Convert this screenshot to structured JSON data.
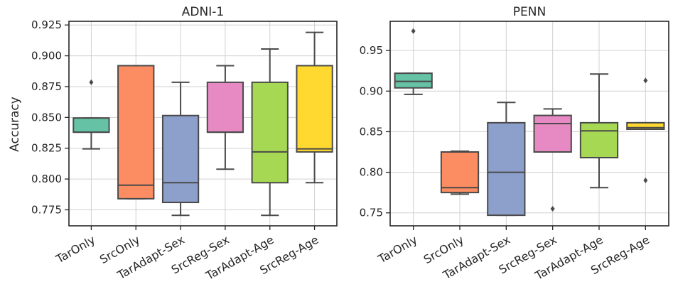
{
  "figure": {
    "ylabel": "Accuracy"
  },
  "chart_data": [
    {
      "type": "box",
      "title": "ADNI-1",
      "ylabel": "Accuracy",
      "ylim": [
        0.762,
        0.928
      ],
      "yticks": [
        "0.775",
        "0.800",
        "0.825",
        "0.850",
        "0.875",
        "0.900",
        "0.925"
      ],
      "grid": true,
      "categories": [
        "TarOnly",
        "SrcOnly",
        "TarAdapt-Sex",
        "SrcReg-Sex",
        "TarAdapt-Age",
        "SrcReg-Age"
      ],
      "boxes": [
        {
          "label": "TarOnly",
          "color": "#66c2a5",
          "whislo": 0.8245,
          "q1": 0.838,
          "median": 0.838,
          "q3": 0.8495,
          "whishi": 0.8495,
          "fliers": [
            0.8785
          ]
        },
        {
          "label": "SrcOnly",
          "color": "#fc8d62",
          "whislo": 0.784,
          "q1": 0.784,
          "median": 0.795,
          "q3": 0.892,
          "whishi": 0.892,
          "fliers": []
        },
        {
          "label": "TarAdapt-Sex",
          "color": "#8da0cb",
          "whislo": 0.7705,
          "q1": 0.781,
          "median": 0.797,
          "q3": 0.8515,
          "whishi": 0.8785,
          "fliers": []
        },
        {
          "label": "SrcReg-Sex",
          "color": "#e78ac3",
          "whislo": 0.808,
          "q1": 0.838,
          "median": 0.838,
          "q3": 0.8785,
          "whishi": 0.892,
          "fliers": []
        },
        {
          "label": "TarAdapt-Age",
          "color": "#a6d854",
          "whislo": 0.7705,
          "q1": 0.797,
          "median": 0.822,
          "q3": 0.8785,
          "whishi": 0.9055,
          "fliers": []
        },
        {
          "label": "SrcReg-Age",
          "color": "#ffd92f",
          "whislo": 0.797,
          "q1": 0.822,
          "median": 0.8245,
          "q3": 0.892,
          "whishi": 0.919,
          "fliers": []
        }
      ]
    },
    {
      "type": "box",
      "title": "PENN",
      "ylabel": "",
      "ylim": [
        0.734,
        0.986
      ],
      "yticks": [
        "0.75",
        "0.80",
        "0.85",
        "0.90",
        "0.95"
      ],
      "grid": true,
      "categories": [
        "TarOnly",
        "SrcOnly",
        "TarAdapt-Sex",
        "SrcReg-Sex",
        "TarAdapt-Age",
        "SrcReg-Age"
      ],
      "boxes": [
        {
          "label": "TarOnly",
          "color": "#66c2a5",
          "whislo": 0.896,
          "q1": 0.904,
          "median": 0.912,
          "q3": 0.922,
          "whishi": 0.922,
          "fliers": [
            0.974
          ]
        },
        {
          "label": "SrcOnly",
          "color": "#fc8d62",
          "whislo": 0.773,
          "q1": 0.775,
          "median": 0.781,
          "q3": 0.825,
          "whishi": 0.826,
          "fliers": []
        },
        {
          "label": "TarAdapt-Sex",
          "color": "#8da0cb",
          "whislo": 0.747,
          "q1": 0.747,
          "median": 0.8,
          "q3": 0.861,
          "whishi": 0.886,
          "fliers": []
        },
        {
          "label": "SrcReg-Sex",
          "color": "#e78ac3",
          "whislo": 0.825,
          "q1": 0.825,
          "median": 0.86,
          "q3": 0.87,
          "whishi": 0.878,
          "fliers": [
            0.755
          ]
        },
        {
          "label": "TarAdapt-Age",
          "color": "#a6d854",
          "whislo": 0.781,
          "q1": 0.818,
          "median": 0.851,
          "q3": 0.861,
          "whishi": 0.921,
          "fliers": []
        },
        {
          "label": "SrcReg-Age",
          "color": "#ffd92f",
          "whislo": 0.853,
          "q1": 0.853,
          "median": 0.855,
          "q3": 0.861,
          "whishi": 0.861,
          "fliers": [
            0.79,
            0.913
          ]
        }
      ]
    }
  ]
}
